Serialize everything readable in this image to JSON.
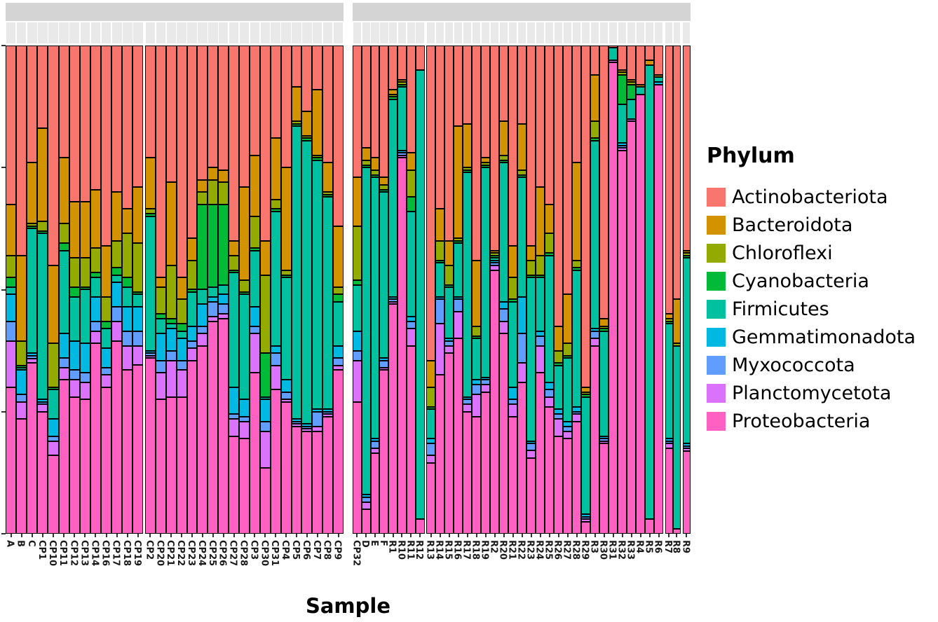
{
  "axis": {
    "x_title": "Sample",
    "y_title": "",
    "y_tick_labels": []
  },
  "legend": {
    "title": "Phylum",
    "entries": [
      {
        "label": "Actinobacteriota",
        "color": "#F8766D"
      },
      {
        "label": "Bacteroidota",
        "color": "#D39200"
      },
      {
        "label": "Chloroflexi",
        "color": "#93AA00"
      },
      {
        "label": "Cyanobacteria",
        "color": "#00BA38"
      },
      {
        "label": "Firmicutes",
        "color": "#00C19F"
      },
      {
        "label": "Gemmatimonadota",
        "color": "#00B9E3"
      },
      {
        "label": "Myxococcota",
        "color": "#619CFF"
      },
      {
        "label": "Planctomycetota",
        "color": "#DB72FB"
      },
      {
        "label": "Proteobacteria",
        "color": "#FF61C3"
      }
    ]
  },
  "chart_data": {
    "type": "bar",
    "stacked": true,
    "normalized": "relative abundance, each bar sums to 100%",
    "title": "",
    "xlabel": "Sample",
    "ylabel": "",
    "ylim": [
      0,
      1
    ],
    "yticks": [
      0,
      0.25,
      0.5,
      0.75,
      1
    ],
    "grid": false,
    "legend_position": "right",
    "phyla": [
      "Actinobacteriota",
      "Bacteroidota",
      "Chloroflexi",
      "Cyanobacteria",
      "Firmicutes",
      "Gemmatimonadota",
      "Myxococcota",
      "Planctomycetota",
      "Proteobacteria"
    ],
    "colors": [
      "#F8766D",
      "#D39200",
      "#93AA00",
      "#00BA38",
      "#00C19F",
      "#00B9E3",
      "#619CFF",
      "#DB72FB",
      "#FF61C3"
    ],
    "facets": [
      {
        "strip_label": "",
        "panels": [
          {
            "samples": [
              "A",
              "B",
              "C",
              "CP1",
              "CP10",
              "CP11",
              "CP12",
              "CP13",
              "CP14",
              "CP16",
              "CP17",
              "CP18",
              "CP19"
            ]
          },
          {
            "samples": [
              "CP2",
              "CP20",
              "CP21",
              "CP22",
              "CP23",
              "CP24",
              "CP25",
              "CP26",
              "CP27",
              "CP28",
              "CP3",
              "CP30",
              "CP31",
              "CP4",
              "CP5",
              "CP6",
              "CP7",
              "CP8",
              "CP9"
            ]
          }
        ]
      },
      {
        "strip_label": "",
        "panels": [
          {
            "samples": [
              "CP32",
              "D",
              "E",
              "F",
              "R1",
              "R10",
              "R11",
              "R12"
            ]
          },
          {
            "samples": [
              "R13",
              "R14",
              "R15",
              "R16",
              "R17",
              "R18",
              "R19",
              "R2",
              "R20",
              "R21",
              "R22",
              "R23",
              "R24",
              "R25",
              "R26",
              "R27",
              "R28",
              "R29",
              "R3",
              "R30",
              "R31",
              "R32",
              "R33",
              "R4",
              "R5",
              "R6"
            ]
          },
          {
            "samples": [
              "R7",
              "R8"
            ]
          },
          {
            "samples": [
              "R9"
            ]
          }
        ]
      }
    ],
    "abundance_percent": {
      "A": [
        32.5,
        10.5,
        4.5,
        2,
        1.5,
        5.5,
        4,
        9.5,
        30
      ],
      "B": [
        43,
        17.5,
        5,
        0.5,
        0.5,
        5,
        1.5,
        3.5,
        23.5
      ],
      "C": [
        24,
        12.5,
        0.5,
        0.5,
        25.5,
        0.5,
        0.7,
        0.8,
        35
      ],
      "CP1": [
        17,
        19,
        2,
        0.5,
        34,
        0.5,
        0.5,
        1.5,
        25
      ],
      "CP10": [
        45,
        16,
        9,
        0.5,
        6,
        3.5,
        1,
        3,
        16
      ],
      "CP11": [
        23,
        13.5,
        4,
        1.5,
        17,
        5,
        2,
        2.5,
        31.5
      ],
      "CP12": [
        32,
        11.5,
        6,
        2,
        9,
        6,
        2,
        3.5,
        28
      ],
      "CP13": [
        32,
        11.5,
        6,
        0.5,
        11,
        6,
        2,
        3.5,
        27.5
      ],
      "CP14": [
        29.5,
        12,
        5,
        1,
        4,
        5,
        2,
        2.5,
        39
      ],
      "CP16": [
        41,
        10.5,
        5,
        1.5,
        4,
        4,
        1.5,
        2.5,
        30
      ],
      "CP17": [
        30,
        10,
        5.5,
        1.5,
        1.5,
        5,
        3,
        4,
        39.5
      ],
      "CP18": [
        33.5,
        5,
        9,
        2,
        4,
        5,
        3,
        5,
        33.5
      ],
      "CP19": [
        29,
        11.5,
        10,
        0.5,
        2.5,
        5,
        3,
        4,
        34.5
      ],
      "CP2": [
        23,
        10.5,
        1,
        0.5,
        27.5,
        0.5,
        0.5,
        0.5,
        36
      ],
      "CP20": [
        47.5,
        2,
        5.5,
        1,
        3,
        5.5,
        2.5,
        5.5,
        27.5
      ],
      "CP21": [
        28,
        17,
        11,
        1,
        1,
        4.5,
        2,
        7.5,
        28
      ],
      "CP22": [
        47.5,
        4.5,
        5,
        1.5,
        1.5,
        4.5,
        2,
        5.5,
        28
      ],
      "CP23": [
        39.5,
        4.5,
        6,
        0.5,
        7,
        3,
        1.5,
        2.5,
        35.5
      ],
      "CP24": [
        27.5,
        2.5,
        2.5,
        17.5,
        3,
        4.5,
        1.5,
        2.5,
        38.5
      ],
      "CP25": [
        25,
        2.5,
        5,
        17,
        2,
        1,
        3,
        1,
        43.5
      ],
      "CP26": [
        25.5,
        2.5,
        4.5,
        16.5,
        2,
        2,
        2,
        1,
        44
      ],
      "CP27": [
        40,
        3,
        3,
        0.5,
        23.5,
        5.5,
        1,
        3.5,
        20
      ],
      "CP28": [
        29,
        19,
        2.5,
        0.5,
        21.5,
        3.5,
        1,
        3.5,
        19.5
      ],
      "CP3": [
        22.5,
        12.5,
        6.5,
        0.5,
        11.5,
        4,
        1.5,
        8,
        33
      ],
      "CP30": [
        40,
        7,
        16,
        9,
        0.5,
        4.5,
        2,
        7.5,
        13.5
      ],
      "CP31": [
        19,
        12.5,
        2,
        0.5,
        27.5,
        1.5,
        2.5,
        5,
        29.5
      ],
      "CP4": [
        25,
        21,
        1,
        0.5,
        21,
        2.5,
        1.5,
        0.5,
        27
      ],
      "CP5": [
        8.5,
        7,
        0.5,
        0.5,
        60,
        0.5,
        0.5,
        0.5,
        22
      ],
      "CP6": [
        13.5,
        5,
        0.5,
        0.5,
        58,
        0.5,
        0.5,
        0.5,
        21
      ],
      "CP7": [
        9,
        13.5,
        0.5,
        0.5,
        51,
        0.5,
        3,
        1,
        21
      ],
      "CP8": [
        24,
        6,
        0.5,
        0.5,
        43.5,
        0.5,
        0.5,
        0.5,
        24
      ],
      "CP9": [
        37,
        12.5,
        1.5,
        1.5,
        9,
        2.5,
        1.5,
        1,
        33.5
      ],
      "CP32": [
        27,
        10,
        11,
        1,
        9.5,
        4,
        2,
        8.5,
        27
      ],
      "D": [
        21,
        2.5,
        1,
        0.5,
        67,
        0.5,
        1,
        1.5,
        5
      ],
      "E": [
        23,
        2.5,
        1,
        0.5,
        53.5,
        0.5,
        1.5,
        1,
        16.5
      ],
      "F": [
        27,
        1.5,
        1,
        0.5,
        34,
        0.5,
        1.5,
        0.5,
        33.5
      ],
      "R1": [
        9,
        1,
        0.5,
        0.5,
        40.5,
        0.5,
        0.5,
        0.5,
        47
      ],
      "R10": [
        7,
        0.5,
        0.5,
        0.5,
        13,
        0.5,
        0.5,
        0.5,
        77
      ],
      "R11": [
        22,
        3.5,
        5.5,
        3,
        21.5,
        1,
        1.5,
        3.5,
        38.5
      ],
      "R12": [
        5,
        0,
        0,
        0,
        92,
        0,
        0,
        0,
        3
      ],
      "R13": [
        64.5,
        5.5,
        4,
        0.5,
        6,
        1,
        2.5,
        1.5,
        14.5
      ],
      "R14": [
        33.5,
        6.5,
        4,
        0.5,
        7,
        0.5,
        5,
        10.5,
        32.5
      ],
      "R15": [
        40,
        5,
        4,
        0.5,
        10.5,
        0.5,
        1,
        1.5,
        37
      ],
      "R16": [
        16.5,
        23,
        0.5,
        0.5,
        11,
        0.5,
        2.5,
        5.5,
        40
      ],
      "R17": [
        16,
        9,
        0.5,
        0.5,
        46,
        0.5,
        1,
        1.5,
        25
      ],
      "R18": [
        44,
        13.5,
        2,
        0.5,
        8.5,
        1,
        2,
        4.5,
        24
      ],
      "R19": [
        23,
        1,
        0.5,
        0.5,
        43,
        0.5,
        1,
        1.5,
        29
      ],
      "R2": [
        42,
        0.5,
        0.5,
        0.5,
        0.5,
        0.5,
        0.5,
        1,
        54
      ],
      "R20": [
        15.5,
        7,
        1,
        0.5,
        28.5,
        1.5,
        2.5,
        2.5,
        41
      ],
      "R21": [
        41,
        6.5,
        4.5,
        0.5,
        17.5,
        2.5,
        1,
        2.5,
        24
      ],
      "R22": [
        16,
        9.5,
        1,
        0.5,
        24.5,
        7.5,
        6,
        4,
        31
      ],
      "R23": [
        41,
        3,
        3,
        0.5,
        33.5,
        0.5,
        1.5,
        1.5,
        15.5
      ],
      "R24": [
        29,
        14,
        4,
        0.5,
        11,
        1,
        2,
        5.5,
        33
      ],
      "R25": [
        32.5,
        6,
        4,
        0.5,
        26,
        1.5,
        1.5,
        2,
        26
      ],
      "R26": [
        57.5,
        5,
        2.5,
        0.5,
        9,
        1,
        1,
        3.5,
        20
      ],
      "R27": [
        51,
        10,
        2.5,
        0.5,
        13,
        1,
        1,
        1.5,
        19.5
      ],
      "R28": [
        24,
        20,
        1.5,
        0.5,
        28,
        1,
        0.5,
        1.5,
        23
      ],
      "R29": [
        70,
        1,
        0.5,
        0.5,
        24,
        0.5,
        0.5,
        0.5,
        2.5
      ],
      "R3": [
        6,
        9.5,
        3.5,
        0.5,
        38.5,
        0.5,
        1.5,
        1.5,
        38.5
      ],
      "R30": [
        56,
        1.5,
        0.5,
        0.5,
        21.5,
        0.5,
        0.5,
        0.5,
        18.5
      ],
      "R31": [
        0.5,
        0,
        0,
        0,
        2.5,
        0,
        0,
        0.5,
        96.5
      ],
      "R32": [
        5,
        0.5,
        0.5,
        6,
        8,
        0.5,
        0.5,
        0.5,
        78.5
      ],
      "R33": [
        7,
        0.5,
        0.5,
        3,
        4,
        0,
        0,
        0.5,
        84.5
      ],
      "R4": [
        8,
        0.5,
        0,
        0,
        1.5,
        0,
        0,
        0,
        90
      ],
      "R5": [
        3,
        1,
        0,
        0,
        93,
        0,
        0,
        0,
        3
      ],
      "R6": [
        6,
        0.5,
        0,
        0,
        1,
        0.5,
        0,
        0,
        92
      ],
      "R7": [
        55,
        1,
        0.5,
        0.5,
        23.5,
        0.5,
        0.5,
        1,
        17.5
      ],
      "R8": [
        52,
        9,
        0.5,
        0,
        37.5,
        0,
        0,
        0,
        1
      ],
      "R9": [
        42,
        0.5,
        0.5,
        0.5,
        38,
        0.5,
        0.5,
        0.5,
        17
      ]
    }
  }
}
